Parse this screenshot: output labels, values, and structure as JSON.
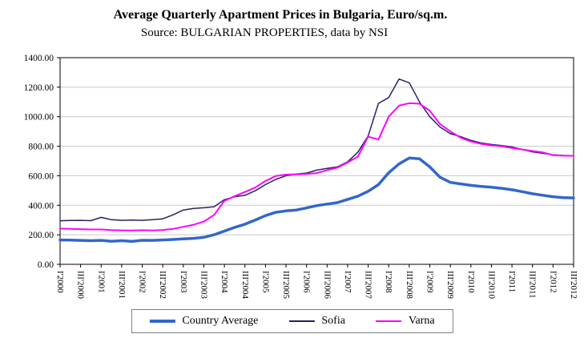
{
  "chart_data": {
    "type": "line",
    "title": "Average Quarterly Apartment Prices in Bulgaria, Euro/sq.m.",
    "subtitle": "Source: BULGARIAN PROPERTIES, data by NSI",
    "ylim": [
      0,
      1400
    ],
    "grid": "horizontal",
    "legend_position": "bottom",
    "y_tick_labels": [
      "0.00",
      "200.00",
      "400.00",
      "600.00",
      "800.00",
      "1000.00",
      "1200.00",
      "1400.00"
    ],
    "label_every": 2,
    "x_tick_labels": [
      "I'2000",
      "III'2000",
      "I'2001",
      "III'2001",
      "I'2002",
      "III'2002",
      "I'2003",
      "III'2003",
      "I'2004",
      "III'2004",
      "I'2005",
      "III'2005",
      "I'2006",
      "III'2006",
      "I'2007",
      "III'2007",
      "I'2008",
      "III'2008",
      "I'2009",
      "III'2009",
      "I'2010",
      "III'2010",
      "I'2011",
      "III'2011",
      "I'2012",
      "III'2012"
    ],
    "x_note": "quarterly points from I'2000 to III'2012; every second quarter labeled",
    "series": [
      {
        "name": "Country Average",
        "color": "#3366CC",
        "width": 3.5,
        "values": [
          165,
          164,
          162,
          160,
          162,
          156,
          160,
          155,
          163,
          162,
          165,
          168,
          172,
          176,
          183,
          200,
          225,
          250,
          272,
          300,
          330,
          352,
          362,
          368,
          382,
          398,
          408,
          418,
          440,
          462,
          495,
          540,
          620,
          680,
          720,
          715,
          660,
          590,
          555,
          545,
          535,
          528,
          522,
          515,
          505,
          492,
          478,
          468,
          458,
          452,
          450
        ]
      },
      {
        "name": "Sofia",
        "color": "#26225E",
        "width": 1.5,
        "values": [
          295,
          297,
          298,
          296,
          318,
          302,
          298,
          300,
          298,
          303,
          308,
          335,
          368,
          378,
          383,
          390,
          438,
          458,
          468,
          498,
          540,
          575,
          600,
          612,
          618,
          638,
          650,
          660,
          695,
          760,
          870,
          1090,
          1130,
          1255,
          1230,
          1100,
          1000,
          930,
          885,
          865,
          840,
          822,
          812,
          805,
          795,
          778,
          762,
          752,
          742,
          738,
          736
        ]
      },
      {
        "name": "Varna",
        "color": "#FF00FF",
        "width": 2,
        "values": [
          242,
          240,
          238,
          236,
          236,
          232,
          230,
          229,
          231,
          229,
          233,
          240,
          254,
          268,
          290,
          335,
          430,
          462,
          490,
          520,
          565,
          598,
          608,
          610,
          612,
          618,
          638,
          655,
          690,
          730,
          865,
          845,
          1000,
          1075,
          1092,
          1088,
          1040,
          950,
          900,
          858,
          832,
          816,
          806,
          800,
          788,
          778,
          768,
          758,
          740,
          736,
          735
        ]
      }
    ]
  }
}
